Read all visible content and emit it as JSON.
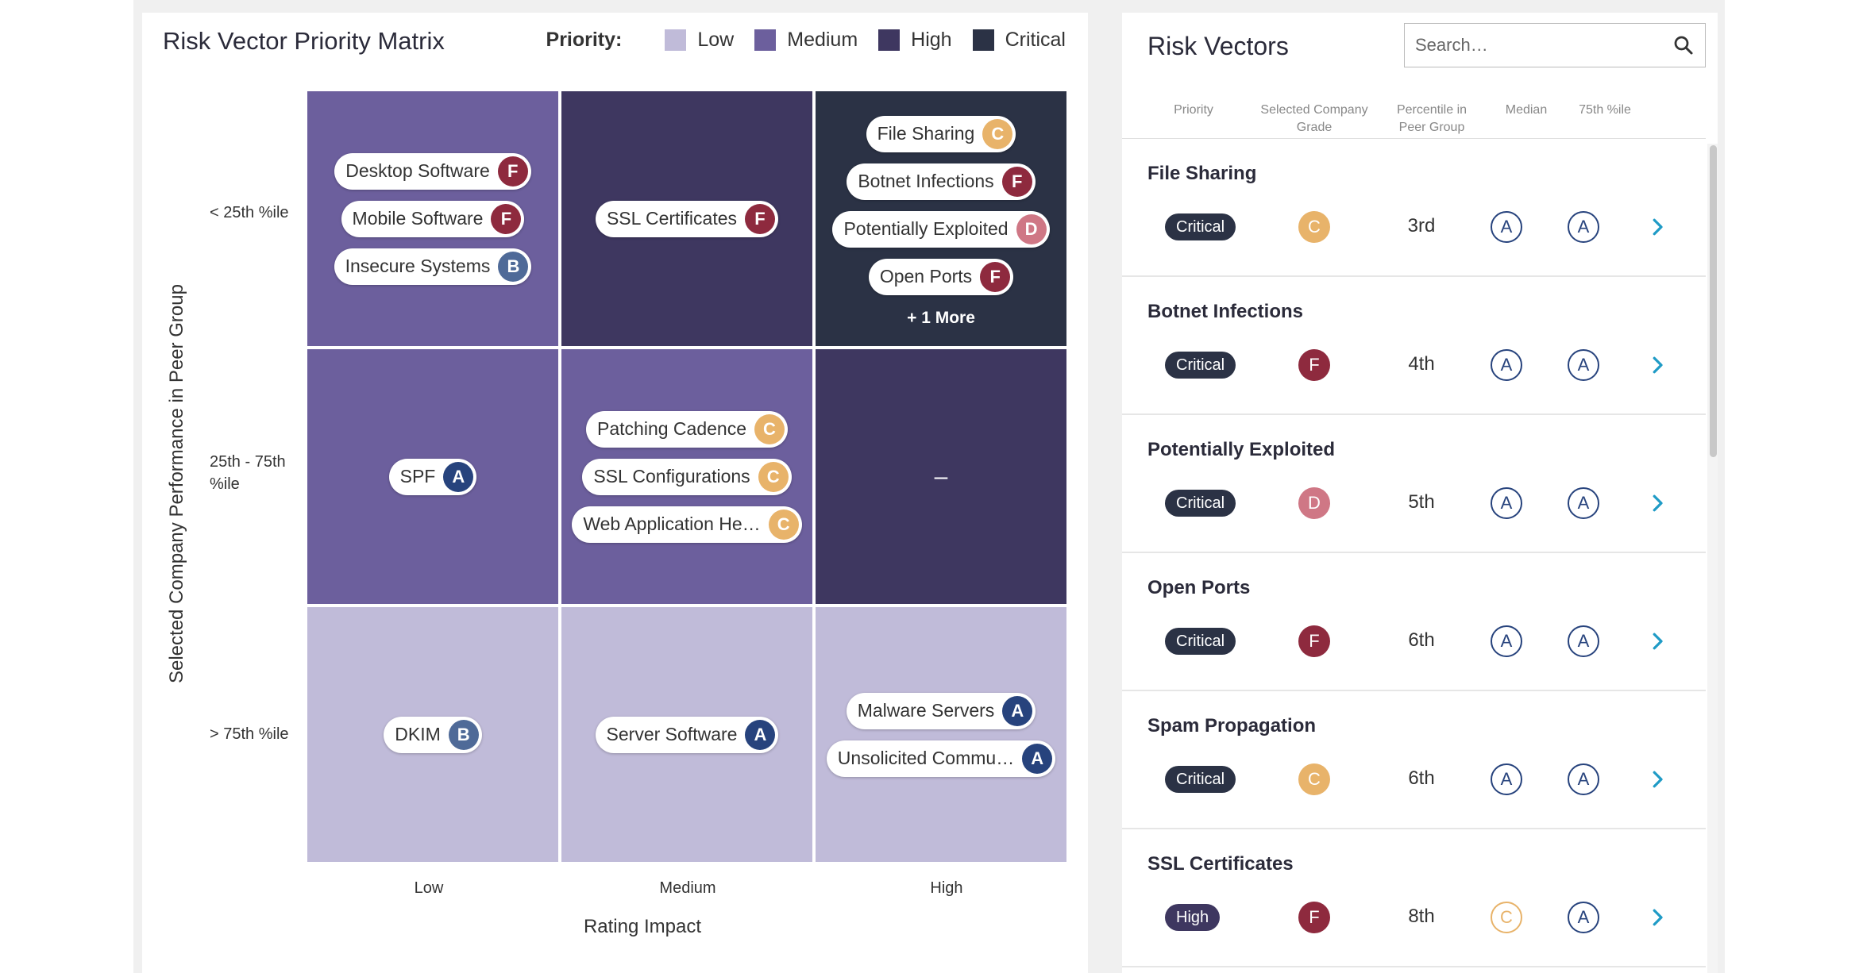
{
  "matrix": {
    "title": "Risk Vector Priority Matrix",
    "legend": {
      "label": "Priority:",
      "items": [
        {
          "label": "Low",
          "color": "#c0bbd9"
        },
        {
          "label": "Medium",
          "color": "#6c5f9d"
        },
        {
          "label": "High",
          "color": "#3e3760"
        },
        {
          "label": "Critical",
          "color": "#2b3245"
        }
      ]
    },
    "y_axis_title": "Selected Company Performance in Peer Group",
    "y_ticks": [
      "< 25th %ile",
      "25th - 75th %ile",
      "> 75th %ile"
    ],
    "x_ticks": [
      "Low",
      "Medium",
      "High"
    ],
    "x_axis_title": "Rating Impact",
    "cells": [
      {
        "row": 0,
        "col": 0,
        "priority": "Medium",
        "color": "#6c5f9d",
        "chips": [
          {
            "label": "Desktop Software",
            "grade": "F"
          },
          {
            "label": "Mobile Software",
            "grade": "F"
          },
          {
            "label": "Insecure Systems",
            "grade": "B"
          }
        ]
      },
      {
        "row": 0,
        "col": 1,
        "priority": "High",
        "color": "#3e3760",
        "chips": [
          {
            "label": "SSL Certificates",
            "grade": "F"
          }
        ]
      },
      {
        "row": 0,
        "col": 2,
        "priority": "Critical",
        "color": "#2b3245",
        "chips": [
          {
            "label": "File Sharing",
            "grade": "C"
          },
          {
            "label": "Botnet Infections",
            "grade": "F"
          },
          {
            "label": "Potentially Exploited",
            "grade": "D"
          },
          {
            "label": "Open Ports",
            "grade": "F"
          }
        ],
        "more": "+ 1 More"
      },
      {
        "row": 1,
        "col": 0,
        "priority": "Medium",
        "color": "#6c5f9d",
        "chips": [
          {
            "label": "SPF",
            "grade": "A"
          }
        ]
      },
      {
        "row": 1,
        "col": 1,
        "priority": "Medium",
        "color": "#6c5f9d",
        "chips": [
          {
            "label": "Patching Cadence",
            "grade": "C"
          },
          {
            "label": "SSL Configurations",
            "grade": "C"
          },
          {
            "label": "Web Application He…",
            "grade": "C"
          }
        ]
      },
      {
        "row": 1,
        "col": 2,
        "priority": "High",
        "color": "#3e3760",
        "chips": [],
        "empty": "–"
      },
      {
        "row": 2,
        "col": 0,
        "priority": "Low",
        "color": "#c0bbd9",
        "chips": [
          {
            "label": "DKIM",
            "grade": "B"
          }
        ]
      },
      {
        "row": 2,
        "col": 1,
        "priority": "Low",
        "color": "#c0bbd9",
        "chips": [
          {
            "label": "Server Software",
            "grade": "A"
          }
        ]
      },
      {
        "row": 2,
        "col": 2,
        "priority": "Low",
        "color": "#c0bbd9",
        "chips": [
          {
            "label": "Malware Servers",
            "grade": "A"
          },
          {
            "label": "Unsolicited Commu…",
            "grade": "A"
          }
        ]
      }
    ]
  },
  "vectors": {
    "title": "Risk Vectors",
    "search_placeholder": "Search…",
    "columns": [
      "Priority",
      "Selected Company Grade",
      "Percentile in Peer Group",
      "Median",
      "75th %ile"
    ],
    "rows": [
      {
        "name": "File Sharing",
        "priority": "Critical",
        "grade": "C",
        "percentile": "3rd",
        "median": "A",
        "p75": "A"
      },
      {
        "name": "Botnet Infections",
        "priority": "Critical",
        "grade": "F",
        "percentile": "4th",
        "median": "A",
        "p75": "A"
      },
      {
        "name": "Potentially Exploited",
        "priority": "Critical",
        "grade": "D",
        "percentile": "5th",
        "median": "A",
        "p75": "A"
      },
      {
        "name": "Open Ports",
        "priority": "Critical",
        "grade": "F",
        "percentile": "6th",
        "median": "A",
        "p75": "A"
      },
      {
        "name": "Spam Propagation",
        "priority": "Critical",
        "grade": "C",
        "percentile": "6th",
        "median": "A",
        "p75": "A"
      },
      {
        "name": "SSL Certificates",
        "priority": "High",
        "grade": "F",
        "percentile": "8th",
        "median": "C",
        "p75": "A"
      }
    ]
  },
  "colors": {
    "grade_F": "#8e2a3e",
    "grade_C": "#e8b36a",
    "grade_D": "#cf7785",
    "grade_B": "#4f6a98",
    "grade_A": "#27437d",
    "chevron": "#1f9bc6"
  }
}
